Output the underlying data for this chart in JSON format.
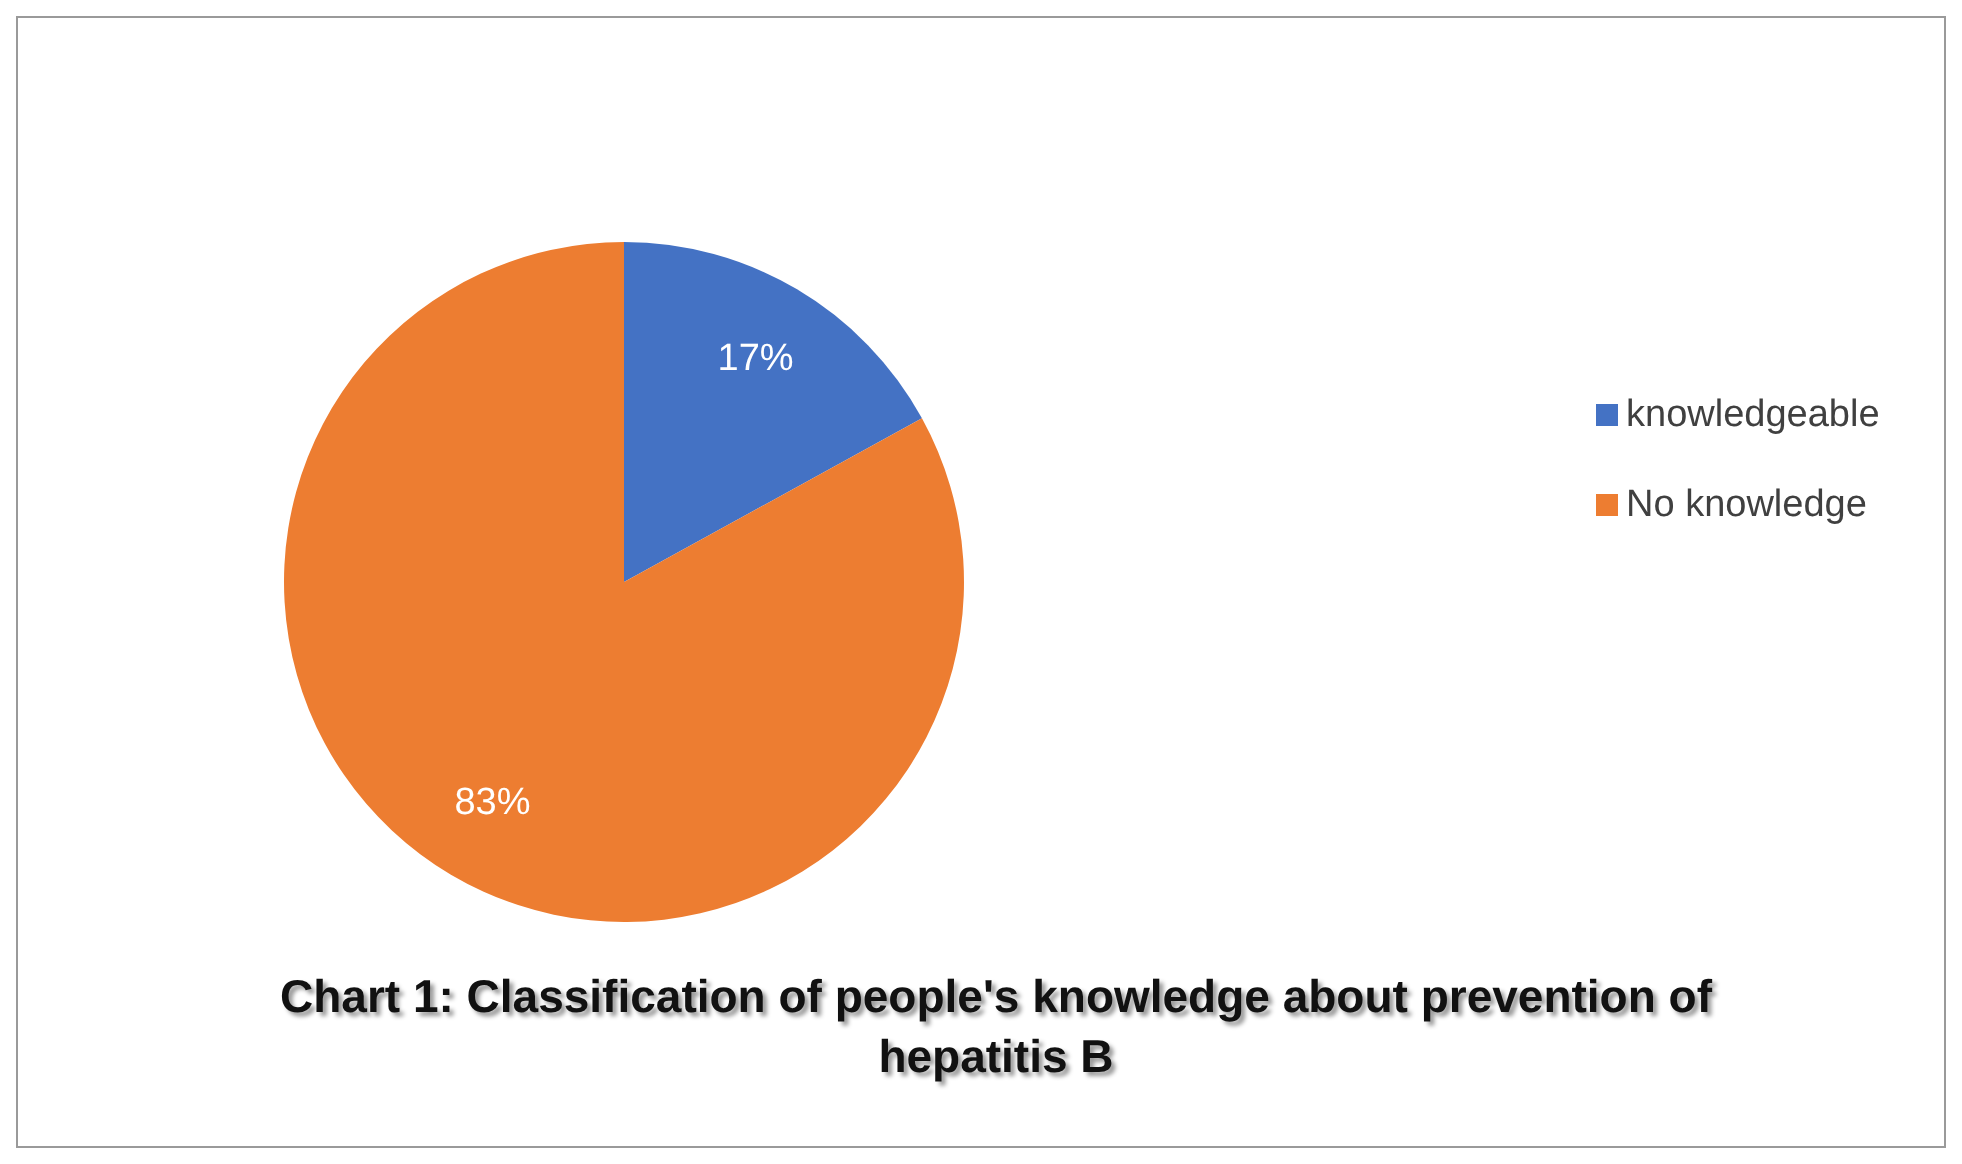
{
  "chart_data": {
    "type": "pie",
    "title": "Chart 1: Classification of people's knowledge about prevention of hepatitis B",
    "categories": [
      "knowledgeable",
      "No knowledge"
    ],
    "values": [
      17,
      83
    ],
    "colors": [
      "#4472c4",
      "#ed7d31"
    ],
    "value_labels": [
      "17%",
      "83%"
    ],
    "legend": "right"
  }
}
